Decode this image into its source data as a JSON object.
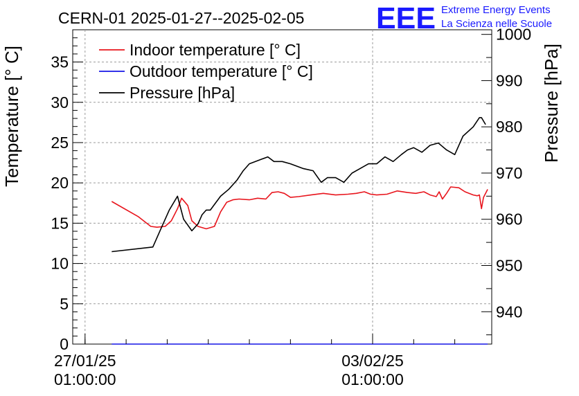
{
  "chart_data": {
    "type": "line",
    "title": "CERN-01 2025-01-27--2025-02-05",
    "ylabel": "Temperature [° C]",
    "y2label": "Pressure [hPa]",
    "ylim": [
      0,
      39
    ],
    "y2lim": [
      933,
      1001
    ],
    "yticks": [
      0,
      5,
      10,
      15,
      20,
      25,
      30,
      35
    ],
    "y2ticks": [
      940,
      950,
      960,
      970,
      980,
      990,
      1000
    ],
    "xlim": [
      -0.3,
      9.9
    ],
    "xticks": [
      {
        "x": 0,
        "date": "27/01/25",
        "time": "01:00:00"
      },
      {
        "x": 7,
        "date": "03/02/25",
        "time": "01:00:00"
      }
    ],
    "grid": true,
    "legend": "top-left",
    "series": [
      {
        "name": "Indoor temperature [° C]",
        "axis": "left",
        "color": "#e8141c",
        "x": [
          0.65,
          1.3,
          1.6,
          1.75,
          1.95,
          2.1,
          2.25,
          2.35,
          2.5,
          2.6,
          2.75,
          2.95,
          3.15,
          3.3,
          3.45,
          3.6,
          3.75,
          4.0,
          4.2,
          4.4,
          4.55,
          4.7,
          4.85,
          5.0,
          5.2,
          5.5,
          5.8,
          6.1,
          6.4,
          6.6,
          6.8,
          6.95,
          7.1,
          7.35,
          7.6,
          7.85,
          8.05,
          8.25,
          8.4,
          8.55,
          8.62,
          8.7,
          8.8,
          8.9,
          9.1,
          9.25,
          9.45,
          9.55,
          9.6,
          9.65,
          9.7,
          9.8
        ],
        "y": [
          17.7,
          15.8,
          14.6,
          14.5,
          14.6,
          15.3,
          16.8,
          18.1,
          17.2,
          15.3,
          14.6,
          14.3,
          14.6,
          16.4,
          17.6,
          17.9,
          18.0,
          17.9,
          18.1,
          18.0,
          18.8,
          18.9,
          18.7,
          18.2,
          18.3,
          18.5,
          18.7,
          18.5,
          18.6,
          18.7,
          18.9,
          18.6,
          18.5,
          18.6,
          19.0,
          18.8,
          18.7,
          18.9,
          18.5,
          18.3,
          18.9,
          18.0,
          18.7,
          19.5,
          19.4,
          18.9,
          18.5,
          18.4,
          18.5,
          16.8,
          18.2,
          19.2
        ]
      },
      {
        "name": "Outdoor temperature [° C]",
        "axis": "left",
        "color": "#1414e6",
        "x": [
          0.65,
          9.8
        ],
        "y": [
          0.0,
          0.0
        ]
      },
      {
        "name": "Pressure [hPa]",
        "axis": "right",
        "color": "#000000",
        "x": [
          0.65,
          1.65,
          1.85,
          2.05,
          2.25,
          2.4,
          2.6,
          2.75,
          2.85,
          2.95,
          3.05,
          3.3,
          3.5,
          3.7,
          3.85,
          4.0,
          4.15,
          4.3,
          4.45,
          4.6,
          4.8,
          5.0,
          5.3,
          5.55,
          5.75,
          5.9,
          6.1,
          6.3,
          6.5,
          6.7,
          6.9,
          7.1,
          7.3,
          7.5,
          7.7,
          7.85,
          8.0,
          8.2,
          8.4,
          8.6,
          8.8,
          9.0,
          9.2,
          9.45,
          9.6,
          9.65,
          9.75
        ],
        "y": [
          953.0,
          954.0,
          958.0,
          962.0,
          965.0,
          960.0,
          957.5,
          959.0,
          961.0,
          962.0,
          962.0,
          965.0,
          966.5,
          968.5,
          970.5,
          972.0,
          972.5,
          973.0,
          973.5,
          972.5,
          972.5,
          972.0,
          971.0,
          970.5,
          968.0,
          969.0,
          969.0,
          968.0,
          970.0,
          971.0,
          972.0,
          972.0,
          973.5,
          972.5,
          974.0,
          975.0,
          975.5,
          974.5,
          976.0,
          976.5,
          975.0,
          974.0,
          978.0,
          980.0,
          982.0,
          982.0,
          980.5
        ]
      }
    ]
  },
  "logo": {
    "mark": "EEE",
    "line1": "Extreme Energy Events",
    "line2": "La Scienza nelle Scuole"
  }
}
